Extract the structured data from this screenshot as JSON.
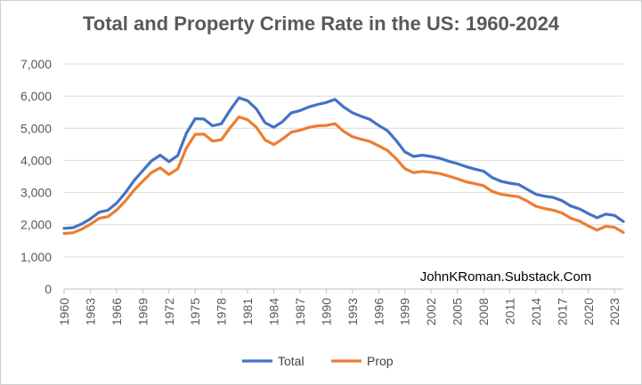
{
  "chart_data": {
    "type": "line",
    "title": "Total and Property Crime Rate in the US: 1960-2024",
    "xlabel": "",
    "ylabel": "",
    "ylim": [
      0,
      7000
    ],
    "yticks": [
      0,
      1000,
      2000,
      3000,
      4000,
      5000,
      6000,
      7000
    ],
    "ytick_labels": [
      "0",
      "1,000",
      "2,000",
      "3,000",
      "4,000",
      "5,000",
      "6,000",
      "7,000"
    ],
    "xticks": [
      1960,
      1963,
      1966,
      1969,
      1972,
      1975,
      1978,
      1981,
      1984,
      1987,
      1990,
      1993,
      1996,
      1999,
      2002,
      2005,
      2008,
      2011,
      2014,
      2017,
      2020,
      2023
    ],
    "grid": "horizontal",
    "legend": "bottom",
    "x": [
      1960,
      1961,
      1962,
      1963,
      1964,
      1965,
      1966,
      1967,
      1968,
      1969,
      1970,
      1971,
      1972,
      1973,
      1974,
      1975,
      1976,
      1977,
      1978,
      1979,
      1980,
      1981,
      1982,
      1983,
      1984,
      1985,
      1986,
      1987,
      1988,
      1989,
      1990,
      1991,
      1992,
      1993,
      1994,
      1995,
      1996,
      1997,
      1998,
      1999,
      2000,
      2001,
      2002,
      2003,
      2004,
      2005,
      2006,
      2007,
      2008,
      2009,
      2010,
      2011,
      2012,
      2013,
      2014,
      2015,
      2016,
      2017,
      2018,
      2019,
      2020,
      2021,
      2022,
      2023,
      2024
    ],
    "series": [
      {
        "name": "Total",
        "color": "#4472C4",
        "values": [
          1887,
          1906,
          2020,
          2180,
          2388,
          2449,
          2671,
          2990,
          3370,
          3680,
          3985,
          4165,
          3961,
          4154,
          4850,
          5299,
          5287,
          5078,
          5140,
          5565,
          5950,
          5858,
          5604,
          5175,
          5031,
          5207,
          5480,
          5550,
          5664,
          5741,
          5803,
          5898,
          5661,
          5484,
          5374,
          5275,
          5087,
          4927,
          4620,
          4267,
          4125,
          4163,
          4125,
          4067,
          3977,
          3900,
          3808,
          3730,
          3667,
          3466,
          3350,
          3292,
          3255,
          3099,
          2946,
          2887,
          2847,
          2745,
          2582,
          2489,
          2346,
          2216,
          2330,
          2288,
          2100
        ]
      },
      {
        "name": "Prop",
        "color": "#ED7D31",
        "values": [
          1726,
          1748,
          1857,
          2012,
          2197,
          2249,
          2451,
          2736,
          3071,
          3351,
          3622,
          3768,
          3561,
          3737,
          4389,
          4811,
          4820,
          4601,
          4642,
          5017,
          5353,
          5264,
          5032,
          4637,
          4492,
          4666,
          4881,
          4940,
          5027,
          5078,
          5089,
          5140,
          4903,
          4740,
          4660,
          4591,
          4451,
          4312,
          4053,
          3743,
          3618,
          3658,
          3631,
          3591,
          3514,
          3432,
          3335,
          3276,
          3215,
          3036,
          2946,
          2909,
          2868,
          2734,
          2574,
          2500,
          2451,
          2362,
          2200,
          2110,
          1958,
          1832,
          1954,
          1917,
          1760
        ]
      }
    ],
    "annotation": "JohnKRoman.Substack.Com"
  }
}
